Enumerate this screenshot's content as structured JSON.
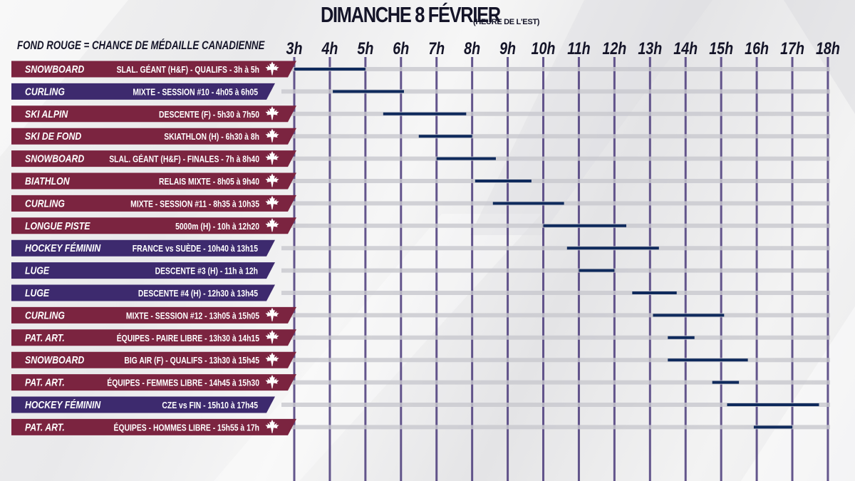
{
  "header": {
    "title": "DIMANCHE 8 FÉVRIER",
    "timezone_note": "(HEURE DE L'EST)",
    "legend": "FOND ROUGE = CHANCE DE MÉDAILLE CANADIENNE"
  },
  "colors": {
    "purple_row": "#3d2a6e",
    "red_row": "#7b2440",
    "bar": "#0f2a5c",
    "grid_line": "#4a3a7a",
    "maple_leaf": "#ffffff"
  },
  "chart_data": {
    "type": "gantt",
    "title": "DIMANCHE 8 FÉVRIER",
    "subtitle": "(HEURE DE L'EST)",
    "x_unit": "hour (Eastern Time)",
    "xlim": [
      3,
      18
    ],
    "ticks": [
      {
        "value": 3,
        "label": "3h"
      },
      {
        "value": 4,
        "label": "4h"
      },
      {
        "value": 5,
        "label": "5h"
      },
      {
        "value": 6,
        "label": "6h"
      },
      {
        "value": 7,
        "label": "7h"
      },
      {
        "value": 8,
        "label": "8h"
      },
      {
        "value": 9,
        "label": "9h"
      },
      {
        "value": 10,
        "label": "10h"
      },
      {
        "value": 11,
        "label": "11h"
      },
      {
        "value": 12,
        "label": "12h"
      },
      {
        "value": 13,
        "label": "13h"
      },
      {
        "value": 14,
        "label": "14h"
      },
      {
        "value": 15,
        "label": "15h"
      },
      {
        "value": 16,
        "label": "16h"
      },
      {
        "value": 17,
        "label": "17h"
      },
      {
        "value": 18,
        "label": "18h"
      }
    ],
    "events": [
      {
        "sport": "SNOWBOARD",
        "detail": "SLAL. GÉANT (H&F) - QUALIFS - 3h à 5h",
        "start": 3.0,
        "end": 5.0,
        "medal_chance": true
      },
      {
        "sport": "CURLING",
        "detail": "MIXTE - SESSION #10 - 4h05 à 6h05",
        "start": 4.0833,
        "end": 6.0833,
        "medal_chance": false
      },
      {
        "sport": "SKI ALPIN",
        "detail": "DESCENTE (F) - 5h30 à 7h50",
        "start": 5.5,
        "end": 7.8333,
        "medal_chance": true
      },
      {
        "sport": "SKI DE FOND",
        "detail": "SKIATHLON (H) - 6h30 à 8h",
        "start": 6.5,
        "end": 8.0,
        "medal_chance": true
      },
      {
        "sport": "SNOWBOARD",
        "detail": "SLAL. GÉANT (H&F) - FINALES - 7h à 8h40",
        "start": 7.0,
        "end": 8.6667,
        "medal_chance": true
      },
      {
        "sport": "BIATHLON",
        "detail": "RELAIS MIXTE - 8h05 à 9h40",
        "start": 8.0833,
        "end": 9.6667,
        "medal_chance": true
      },
      {
        "sport": "CURLING",
        "detail": "MIXTE - SESSION #11 - 8h35 à 10h35",
        "start": 8.5833,
        "end": 10.5833,
        "medal_chance": true
      },
      {
        "sport": "LONGUE PISTE",
        "detail": "5000m (H) - 10h à 12h20",
        "start": 10.0,
        "end": 12.3333,
        "medal_chance": true
      },
      {
        "sport": "HOCKEY FÉMININ",
        "detail": "FRANCE vs SUÈDE - 10h40 à 13h15",
        "start": 10.6667,
        "end": 13.25,
        "medal_chance": false
      },
      {
        "sport": "LUGE",
        "detail": "DESCENTE #3 (H) - 11h à 12h",
        "start": 11.0,
        "end": 12.0,
        "medal_chance": false
      },
      {
        "sport": "LUGE",
        "detail": "DESCENTE #4 (H) - 12h30 à 13h45",
        "start": 12.5,
        "end": 13.75,
        "medal_chance": false
      },
      {
        "sport": "CURLING",
        "detail": "MIXTE - SESSION #12 - 13h05 à 15h05",
        "start": 13.0833,
        "end": 15.0833,
        "medal_chance": true
      },
      {
        "sport": "PAT. ART.",
        "detail": "ÉQUIPES - PAIRE LIBRE - 13h30 à 14h15",
        "start": 13.5,
        "end": 14.25,
        "medal_chance": true
      },
      {
        "sport": "SNOWBOARD",
        "detail": "BIG AIR (F) - QUALIFS - 13h30 à 15h45",
        "start": 13.5,
        "end": 15.75,
        "medal_chance": true
      },
      {
        "sport": "PAT. ART.",
        "detail": "ÉQUIPES - FEMMES LIBRE - 14h45 à 15h30",
        "start": 14.75,
        "end": 15.5,
        "medal_chance": true
      },
      {
        "sport": "HOCKEY FÉMININ",
        "detail": "CZE vs FIN - 15h10 à 17h45",
        "start": 15.1667,
        "end": 17.75,
        "medal_chance": false
      },
      {
        "sport": "PAT. ART.",
        "detail": "ÉQUIPES - HOMMES LIBRE - 15h55 à 17h",
        "start": 15.9167,
        "end": 17.0,
        "medal_chance": true
      }
    ]
  }
}
